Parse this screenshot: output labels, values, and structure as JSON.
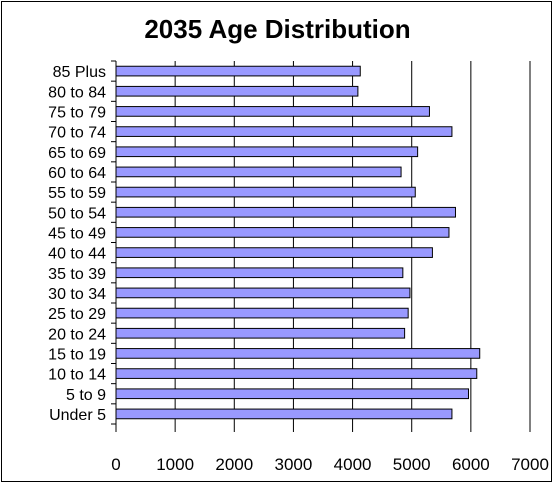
{
  "chart_data": {
    "type": "bar",
    "orientation": "horizontal",
    "title": "2035 Age Distribution",
    "xlabel": "",
    "ylabel": "",
    "categories": [
      "85 Plus",
      "80 to 84",
      "75 to 79",
      "70 to 74",
      "65 to 69",
      "60 to 64",
      "55 to 59",
      "50 to 54",
      "45 to 49",
      "40 to 44",
      "35 to 39",
      "30 to 34",
      "25 to 29",
      "20 to 24",
      "15 to 19",
      "10 to 14",
      "5 to 9",
      "Under 5"
    ],
    "values": [
      4130,
      4090,
      5300,
      5680,
      5100,
      4820,
      5060,
      5740,
      5630,
      5350,
      4850,
      4970,
      4940,
      4880,
      6150,
      6100,
      5960,
      5680
    ],
    "xlim": [
      0,
      7000
    ],
    "xticks": [
      "0",
      "1000",
      "2000",
      "3000",
      "4000",
      "5000",
      "6000",
      "7000"
    ],
    "grid": "vertical",
    "legend": "none",
    "colors": {
      "bar_fill": "#9999ff",
      "bar_stroke": "#000000",
      "grid": "#000000",
      "frame": "#000000"
    }
  }
}
